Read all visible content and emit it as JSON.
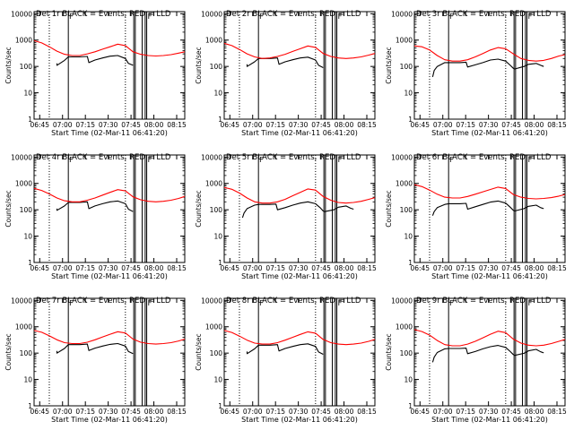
{
  "figure": {
    "panel_titles": [
      "Det 1r BLACK = Events, RED = LLD",
      "Det 2r BLACK = Events, RED = LLD",
      "Det 3r BLACK = Events, RED = LLD",
      "Det 4r BLACK = Events, RED = LLD",
      "Det 5r BLACK = Events, RED = LLD",
      "Det 6r BLACK = Events, RED = LLD",
      "Det 7r BLACK = Events, RED = LLD",
      "Det 8r BLACK = Events, RED = LLD",
      "Det 9r BLACK = Events, RED = LLD"
    ],
    "xlabel": "Start Time (02-Mar-11 06:41:20)",
    "ylabel": "Counts/sec",
    "x_tick_labels": [
      "06:45",
      "07:00",
      "07:15",
      "07:30",
      "07:45",
      "08:00",
      "08:15"
    ],
    "y_tick_labels": [
      "1",
      "10",
      "100",
      "1000",
      "10000"
    ],
    "flag_label": "F",
    "colors": {
      "events": "#000000",
      "lld": "#ff0000",
      "axes": "#000000",
      "background": "#ffffff"
    }
  },
  "chart_data": {
    "type": "line",
    "layout": "3x3 grid",
    "x_unit": "minutes after 06:41:20",
    "xlim": [
      0,
      99
    ],
    "x_ticks": [
      3.7,
      18.7,
      33.7,
      48.7,
      63.7,
      78.7,
      93.7
    ],
    "y_scale": "log",
    "ylim": [
      1,
      12000
    ],
    "y_ticks": [
      1,
      10,
      100,
      1000,
      10000
    ],
    "dotted_vlines": [
      10,
      60
    ],
    "solid_vlines": [
      22.5,
      65.5,
      66.5,
      71,
      73,
      74
    ],
    "flags_at": [
      22.5,
      74
    ],
    "panels": [
      {
        "det": "1r",
        "lld": {
          "x": [
            0,
            5,
            10,
            15,
            20,
            25,
            30,
            35,
            40,
            45,
            50,
            55,
            60,
            65,
            70,
            75,
            80,
            85,
            90,
            95,
            99
          ],
          "y": [
            950,
            780,
            560,
            380,
            290,
            260,
            260,
            300,
            360,
            450,
            560,
            700,
            620,
            360,
            290,
            260,
            250,
            260,
            280,
            320,
            360
          ]
        },
        "events": {
          "x": [
            15,
            15,
            20,
            22.5,
            24,
            30,
            35,
            36,
            40,
            45,
            50,
            55,
            60,
            62,
            65
          ],
          "y": [
            130,
            110,
            170,
            230,
            230,
            230,
            240,
            140,
            175,
            210,
            245,
            260,
            200,
            130,
            110
          ]
        }
      },
      {
        "det": "2r",
        "lld": {
          "x": [
            0,
            5,
            10,
            15,
            20,
            25,
            30,
            35,
            40,
            45,
            50,
            55,
            60,
            65,
            70,
            75,
            80,
            85,
            90,
            95,
            99
          ],
          "y": [
            750,
            620,
            440,
            300,
            230,
            200,
            210,
            240,
            290,
            370,
            470,
            600,
            530,
            310,
            240,
            210,
            200,
            210,
            230,
            270,
            310
          ]
        },
        "events": {
          "x": [
            15,
            15,
            20,
            22.5,
            24,
            30,
            35,
            36,
            40,
            45,
            50,
            55,
            60,
            62,
            65
          ],
          "y": [
            120,
            100,
            150,
            200,
            200,
            200,
            210,
            120,
            150,
            180,
            210,
            225,
            175,
            110,
            90
          ]
        }
      },
      {
        "det": "3r",
        "lld": {
          "x": [
            0,
            5,
            10,
            15,
            20,
            25,
            30,
            35,
            40,
            45,
            50,
            55,
            60,
            65,
            70,
            75,
            80,
            85,
            90,
            95,
            99
          ],
          "y": [
            600,
            560,
            420,
            260,
            180,
            160,
            160,
            180,
            230,
            310,
            420,
            520,
            470,
            300,
            200,
            170,
            160,
            170,
            200,
            250,
            280
          ]
        },
        "events": {
          "x": [
            12,
            13,
            15,
            20,
            22.5,
            25,
            30,
            34,
            35,
            40,
            45,
            50,
            55,
            60,
            63,
            65,
            66,
            72,
            75,
            80,
            83,
            85
          ],
          "y": [
            40,
            70,
            100,
            140,
            140,
            140,
            140,
            145,
            95,
            115,
            140,
            175,
            190,
            160,
            110,
            85,
            80,
            100,
            120,
            130,
            110,
            100
          ]
        }
      },
      {
        "det": "4r",
        "lld": {
          "x": [
            0,
            5,
            10,
            15,
            20,
            25,
            30,
            35,
            40,
            45,
            50,
            55,
            60,
            65,
            70,
            75,
            80,
            85,
            90,
            95,
            99
          ],
          "y": [
            650,
            540,
            400,
            280,
            220,
            200,
            200,
            230,
            280,
            360,
            460,
            580,
            520,
            310,
            240,
            210,
            200,
            210,
            230,
            270,
            320
          ]
        },
        "events": {
          "x": [
            15,
            15,
            20,
            22.5,
            24,
            30,
            35,
            36,
            40,
            45,
            50,
            55,
            60,
            62,
            65
          ],
          "y": [
            110,
            95,
            140,
            190,
            190,
            190,
            200,
            110,
            140,
            170,
            200,
            215,
            170,
            105,
            85
          ]
        }
      },
      {
        "det": "5r",
        "lld": {
          "x": [
            0,
            5,
            10,
            15,
            20,
            25,
            30,
            35,
            40,
            45,
            50,
            55,
            60,
            65,
            70,
            75,
            80,
            85,
            90,
            95,
            99
          ],
          "y": [
            700,
            600,
            430,
            280,
            200,
            180,
            180,
            200,
            250,
            340,
            460,
            620,
            560,
            320,
            230,
            190,
            180,
            190,
            210,
            250,
            290
          ]
        },
        "events": {
          "x": [
            12,
            13,
            15,
            20,
            22.5,
            25,
            30,
            34,
            35,
            40,
            45,
            50,
            55,
            60,
            63,
            65,
            66,
            72,
            75,
            80,
            83,
            85
          ],
          "y": [
            50,
            75,
            110,
            150,
            160,
            160,
            160,
            165,
            100,
            120,
            150,
            180,
            200,
            170,
            120,
            90,
            85,
            100,
            125,
            140,
            115,
            105
          ]
        }
      },
      {
        "det": "6r",
        "lld": {
          "x": [
            0,
            5,
            10,
            15,
            20,
            25,
            30,
            35,
            40,
            45,
            50,
            55,
            60,
            65,
            70,
            75,
            80,
            85,
            90,
            95,
            99
          ],
          "y": [
            900,
            760,
            560,
            390,
            300,
            280,
            280,
            320,
            390,
            480,
            590,
            720,
            640,
            380,
            300,
            270,
            260,
            270,
            290,
            330,
            380
          ]
        },
        "events": {
          "x": [
            12,
            13,
            15,
            20,
            22.5,
            25,
            30,
            34,
            35,
            40,
            45,
            50,
            55,
            60,
            63,
            65,
            66,
            72,
            75,
            80,
            83,
            85
          ],
          "y": [
            60,
            85,
            120,
            160,
            170,
            170,
            170,
            175,
            105,
            130,
            160,
            195,
            215,
            180,
            125,
            95,
            90,
            110,
            135,
            150,
            120,
            110
          ]
        }
      },
      {
        "det": "7r",
        "lld": {
          "x": [
            0,
            5,
            10,
            15,
            20,
            25,
            30,
            35,
            40,
            45,
            50,
            55,
            60,
            65,
            70,
            75,
            80,
            85,
            90,
            95,
            99
          ],
          "y": [
            720,
            620,
            450,
            320,
            250,
            230,
            230,
            260,
            320,
            410,
            520,
            650,
            580,
            340,
            260,
            230,
            220,
            230,
            250,
            290,
            340
          ]
        },
        "events": {
          "x": [
            15,
            15,
            20,
            22.5,
            24,
            30,
            35,
            36,
            40,
            45,
            50,
            55,
            60,
            62,
            65
          ],
          "y": [
            120,
            100,
            150,
            210,
            210,
            210,
            220,
            125,
            155,
            185,
            215,
            230,
            185,
            115,
            95
          ]
        }
      },
      {
        "det": "8r",
        "lld": {
          "x": [
            0,
            5,
            10,
            15,
            20,
            25,
            30,
            35,
            40,
            45,
            50,
            55,
            60,
            65,
            70,
            75,
            80,
            85,
            90,
            95,
            99
          ],
          "y": [
            720,
            610,
            440,
            310,
            240,
            220,
            220,
            250,
            310,
            400,
            510,
            640,
            570,
            330,
            250,
            220,
            210,
            220,
            240,
            280,
            330
          ]
        },
        "events": {
          "x": [
            15,
            15,
            20,
            22.5,
            24,
            30,
            35,
            36,
            40,
            45,
            50,
            55,
            60,
            62,
            65
          ],
          "y": [
            115,
            95,
            145,
            200,
            200,
            200,
            210,
            120,
            150,
            180,
            210,
            225,
            180,
            110,
            90
          ]
        }
      },
      {
        "det": "9r",
        "lld": {
          "x": [
            0,
            5,
            10,
            15,
            20,
            25,
            30,
            35,
            40,
            45,
            50,
            55,
            60,
            65,
            70,
            75,
            80,
            85,
            90,
            95,
            99
          ],
          "y": [
            780,
            660,
            480,
            300,
            210,
            190,
            190,
            220,
            280,
            380,
            520,
            680,
            600,
            340,
            240,
            200,
            190,
            200,
            230,
            280,
            330
          ]
        },
        "events": {
          "x": [
            12,
            13,
            15,
            20,
            22.5,
            25,
            30,
            34,
            35,
            40,
            45,
            50,
            55,
            60,
            63,
            65,
            66,
            72,
            75,
            80,
            83,
            85
          ],
          "y": [
            45,
            70,
            105,
            145,
            150,
            150,
            150,
            155,
            95,
            115,
            145,
            175,
            195,
            165,
            115,
            88,
            82,
            98,
            122,
            138,
            112,
            102
          ]
        }
      }
    ]
  }
}
